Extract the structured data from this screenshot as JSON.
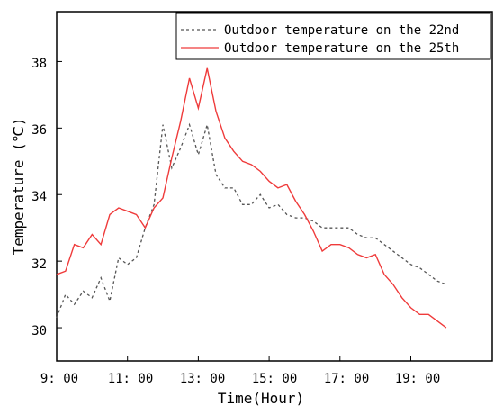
{
  "chart_data": {
    "type": "line",
    "xlabel": "Time(Hour)",
    "ylabel": "Temperature (℃)",
    "x_tick_labels": [
      "9: 00",
      "11: 00",
      "13: 00",
      "15: 00",
      "17: 00",
      "19: 00"
    ],
    "y_tick_labels": [
      "30",
      "32",
      "34",
      "36",
      "38"
    ],
    "xlim": [
      9,
      21.3
    ],
    "ylim": [
      29,
      39.5
    ],
    "legend_position": "top-right",
    "series": [
      {
        "name": "Outdoor temperature on the 22nd",
        "color": "#555555",
        "style": "dashed",
        "x": [
          9.0,
          9.25,
          9.5,
          9.75,
          10.0,
          10.25,
          10.5,
          10.75,
          11.0,
          11.25,
          11.5,
          11.75,
          12.0,
          12.25,
          12.5,
          12.75,
          13.0,
          13.25,
          13.5,
          13.75,
          14.0,
          14.25,
          14.5,
          14.75,
          15.0,
          15.25,
          15.5,
          15.75,
          16.0,
          16.25,
          16.5,
          16.75,
          17.0,
          17.25,
          17.5,
          17.75,
          18.0,
          18.25,
          18.5,
          18.75,
          19.0,
          19.25,
          19.5,
          19.75,
          20.0
        ],
        "y": [
          30.3,
          31.0,
          30.7,
          31.1,
          30.9,
          31.5,
          30.8,
          32.1,
          31.9,
          32.1,
          33.0,
          33.7,
          36.1,
          34.8,
          35.4,
          36.1,
          35.2,
          36.1,
          34.6,
          34.2,
          34.2,
          33.7,
          33.7,
          34.0,
          33.6,
          33.7,
          33.4,
          33.3,
          33.3,
          33.2,
          33.0,
          33.0,
          33.0,
          33.0,
          32.8,
          32.7,
          32.7,
          32.5,
          32.3,
          32.1,
          31.9,
          31.8,
          31.6,
          31.4,
          31.3
        ]
      },
      {
        "name": "Outdoor temperature on the 25th",
        "color": "#ef3b3b",
        "style": "solid",
        "x": [
          9.0,
          9.25,
          9.5,
          9.75,
          10.0,
          10.25,
          10.5,
          10.75,
          11.0,
          11.25,
          11.5,
          11.75,
          12.0,
          12.25,
          12.5,
          12.75,
          13.0,
          13.25,
          13.5,
          13.75,
          14.0,
          14.25,
          14.5,
          14.75,
          15.0,
          15.25,
          15.5,
          15.75,
          16.0,
          16.25,
          16.5,
          16.75,
          17.0,
          17.25,
          17.5,
          17.75,
          18.0,
          18.25,
          18.5,
          18.75,
          19.0,
          19.25,
          19.5,
          19.75,
          20.0
        ],
        "y": [
          31.6,
          31.7,
          32.5,
          32.4,
          32.8,
          32.5,
          33.4,
          33.6,
          33.5,
          33.4,
          33.0,
          33.6,
          33.9,
          35.1,
          36.2,
          37.5,
          36.6,
          37.8,
          36.5,
          35.7,
          35.3,
          35.0,
          34.9,
          34.7,
          34.4,
          34.2,
          34.3,
          33.8,
          33.4,
          32.9,
          32.3,
          32.5,
          32.5,
          32.4,
          32.2,
          32.1,
          32.2,
          31.6,
          31.3,
          30.9,
          30.6,
          30.4,
          30.4,
          30.2,
          30.0
        ]
      }
    ]
  }
}
